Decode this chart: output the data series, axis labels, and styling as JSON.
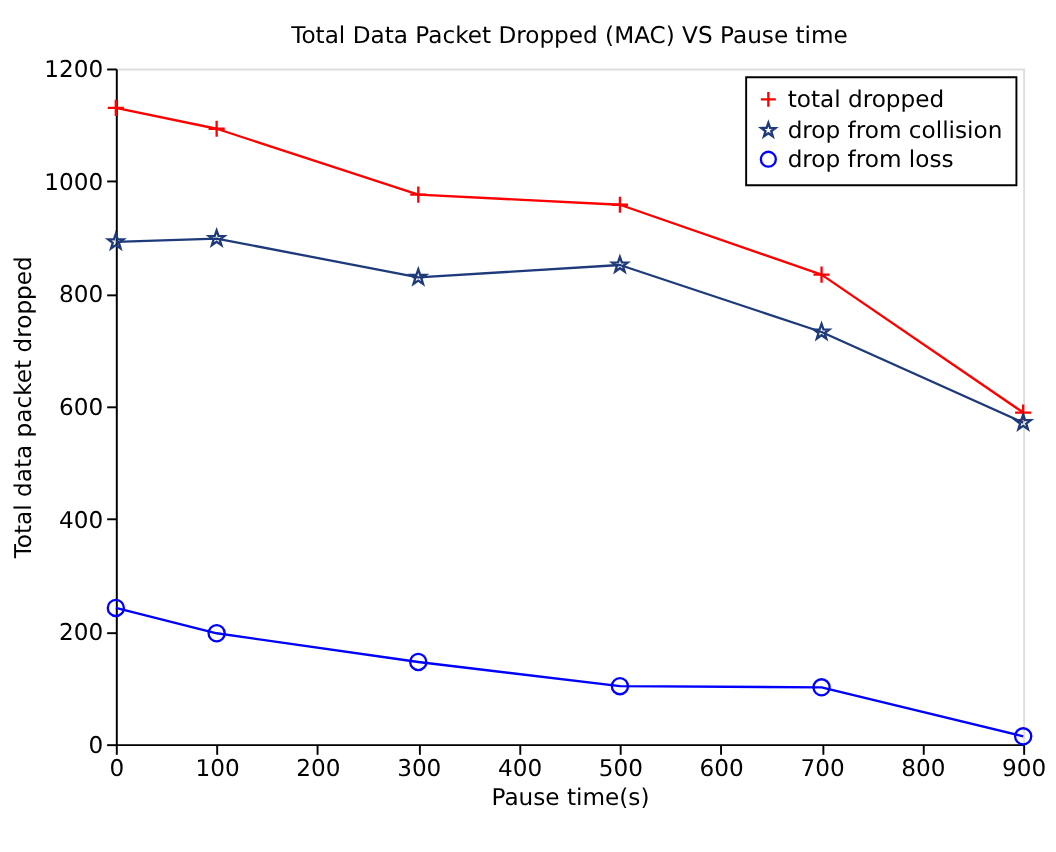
{
  "chart_data": {
    "type": "line",
    "title": "Total  Data Packet Dropped (MAC) VS Pause time",
    "xlabel": "Pause time(s)",
    "ylabel": "Total data packet dropped",
    "x": [
      0,
      100,
      300,
      500,
      700,
      900
    ],
    "series": [
      {
        "name": "total dropped",
        "color": "#ff0000",
        "marker": "cross",
        "values": [
          1130,
          1093,
          976,
          958,
          834,
          589
        ]
      },
      {
        "name": "drop from collision",
        "color": "#1f3a7a",
        "marker": "star",
        "values": [
          892,
          898,
          829,
          851,
          732,
          571
        ]
      },
      {
        "name": "drop from loss",
        "color": "#0000ff",
        "marker": "circle",
        "values": [
          242,
          197,
          146,
          103,
          101,
          14
        ]
      }
    ],
    "xlim": [
      0,
      900
    ],
    "xticks": [
      0,
      100,
      200,
      300,
      400,
      500,
      600,
      700,
      800,
      900
    ],
    "ylim": [
      0,
      1200
    ],
    "yticks": [
      0,
      200,
      400,
      600,
      800,
      1000,
      1200
    ],
    "grid": false,
    "legend": "top right",
    "line_style": "solid"
  }
}
